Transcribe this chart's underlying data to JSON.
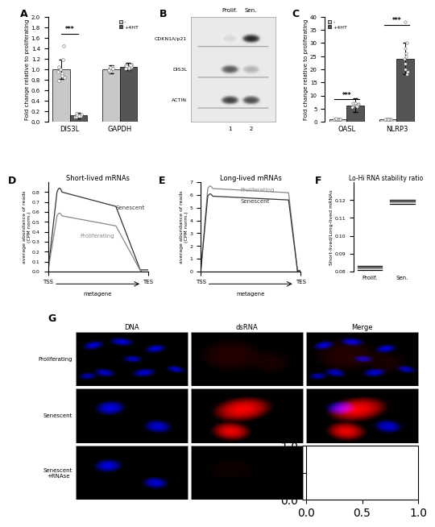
{
  "panel_A": {
    "categories": [
      "DIS3L",
      "GAPDH"
    ],
    "bar_minus": [
      1.0,
      1.0
    ],
    "bar_plus": [
      0.12,
      1.05
    ],
    "bar_minus_err": [
      0.18,
      0.08
    ],
    "bar_plus_err": [
      0.05,
      0.07
    ],
    "ylim": [
      0,
      2.0
    ],
    "yticks": [
      0.0,
      0.2,
      0.4,
      0.6,
      0.8,
      1.0,
      1.2,
      1.4,
      1.6,
      1.8,
      2.0
    ],
    "ylabel": "Fold change relative to proliferating",
    "color_minus": "#c8c8c8",
    "color_plus": "#555555",
    "scatter_minus_DIS3L": [
      1.0,
      0.85,
      1.18,
      0.92,
      0.78,
      1.05,
      0.95,
      1.45,
      0.88
    ],
    "scatter_plus_DIS3L": [
      0.12,
      0.1,
      0.14,
      0.11,
      0.13,
      0.09,
      0.15,
      0.12,
      0.11
    ],
    "scatter_minus_GAPDH": [
      1.0,
      0.95,
      1.05,
      0.98,
      1.02,
      0.97,
      1.03,
      1.01,
      0.99
    ],
    "scatter_plus_GAPDH": [
      1.05,
      1.02,
      1.08,
      1.03,
      1.06,
      1.01,
      1.09,
      1.04,
      1.07
    ],
    "sig_DIS3L": "***",
    "label_minus": "-",
    "label_plus": "+4HT"
  },
  "panel_B": {
    "labels": [
      "CDKN1A/p21",
      "DIS3L",
      "ACTIN"
    ],
    "lanes": [
      "Prolif.",
      "Sen."
    ],
    "lane_numbers": [
      "1",
      "2"
    ],
    "band_prolif_intensities": [
      0.15,
      0.65,
      0.75
    ],
    "band_sen_intensities": [
      0.85,
      0.3,
      0.7
    ]
  },
  "panel_C": {
    "categories": [
      "OASL",
      "NLRP3"
    ],
    "bar_minus": [
      1.0,
      1.0
    ],
    "bar_plus": [
      6.3,
      24.0
    ],
    "bar_minus_err": [
      0.2,
      0.15
    ],
    "bar_plus_err": [
      2.5,
      6.0
    ],
    "ylim": [
      0,
      40
    ],
    "yticks": [
      0,
      5,
      10,
      15,
      20,
      25,
      30,
      35,
      40
    ],
    "ylabel": "Fold change relative to proliferating",
    "color_minus": "#c8c8c8",
    "color_plus": "#555555",
    "sig_OASL": "***",
    "sig_NLRP3": "***",
    "scatter_minus_OASL": [
      1.0,
      0.9,
      1.1,
      0.95,
      1.05,
      0.85,
      1.15
    ],
    "scatter_plus_OASL": [
      6.3,
      5.8,
      7.2,
      6.0,
      6.8,
      5.5,
      7.0,
      6.5,
      6.2,
      5.9
    ],
    "scatter_minus_NLRP3": [
      1.0,
      0.9,
      1.1,
      0.95,
      1.05
    ],
    "scatter_plus_NLRP3": [
      24.0,
      18.0,
      28.0,
      22.0,
      26.0,
      20.0,
      30.0,
      25.0,
      19.0,
      38.0
    ],
    "label_minus": "-",
    "label_plus": "+4HT"
  },
  "panel_D": {
    "title": "Short-lived mRNAs",
    "xlabel": "metagene",
    "ylabel": "average abundance of reads\n(CPM norm.)",
    "ylim": [
      0.0,
      0.9
    ],
    "yticks": [
      0.0,
      0.1,
      0.2,
      0.3,
      0.4,
      0.5,
      0.6,
      0.7,
      0.8
    ],
    "senescent_color": "#333333",
    "proliferating_color": "#888888",
    "label_senescent": "Senescent",
    "label_proliferating": "Proliferating"
  },
  "panel_E": {
    "title": "Long-lived mRNAs",
    "xlabel": "metagene",
    "ylabel": "average abundance of reads\n(CPM norm.)",
    "ylim": [
      0,
      7
    ],
    "yticks": [
      0,
      1,
      2,
      3,
      4,
      5,
      6,
      7
    ],
    "senescent_color": "#333333",
    "proliferating_color": "#888888",
    "label_senescent": "Senescent",
    "label_proliferating": "Proliferating"
  },
  "panel_F": {
    "title": "Lo-Hi RNA stability ratio",
    "ylabel": "Short-lived/Long-lived mRNAs",
    "ylim": [
      0.08,
      0.13
    ],
    "yticks": [
      0.08,
      0.09,
      0.1,
      0.11,
      0.12
    ],
    "categories": [
      "Prolif.",
      "Sen."
    ],
    "prolif_lines": [
      0.081,
      0.082,
      0.083
    ],
    "sen_lines": [
      0.118,
      0.119,
      0.12
    ]
  },
  "panel_G": {
    "rows": [
      "Proliferating",
      "Senescent",
      "Senescent\n+RNAse"
    ],
    "cols": [
      "DNA",
      "dsRNA",
      "Merge"
    ]
  },
  "figure_bgcolor": "#ffffff"
}
